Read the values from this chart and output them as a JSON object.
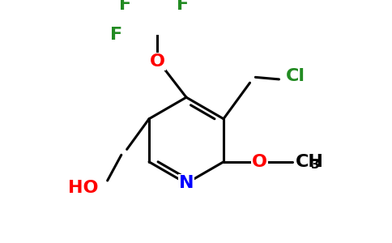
{
  "bg_color": "#ffffff",
  "bond_color": "#000000",
  "bond_width": 2.2,
  "atom_colors": {
    "O": "#ff0000",
    "N": "#0000ff",
    "F": "#228B22",
    "Cl": "#228B22"
  },
  "font_size": 16,
  "font_size_sub": 11
}
